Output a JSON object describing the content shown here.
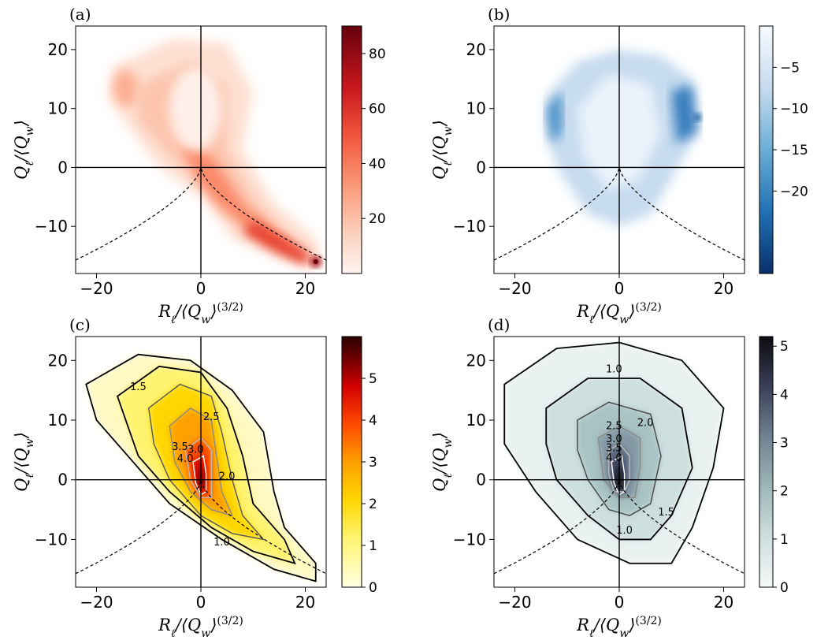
{
  "chart_data": [
    {
      "panel": "(a)",
      "type": "heatmap",
      "cmap": "Reds",
      "xlabel": "R_ℓ/⟨Q_w⟩^(3/2)",
      "ylabel": "Q_ℓ/⟨Q_w⟩",
      "xlim": [
        -24,
        24
      ],
      "ylim": [
        -18,
        24
      ],
      "xticks": [
        -20,
        0,
        20
      ],
      "yticks": [
        -10,
        0,
        10,
        20
      ],
      "colorbar": {
        "min": 0,
        "max": 90,
        "ticks": [
          20,
          40,
          60,
          80
        ]
      },
      "shape": "blob",
      "blobs": [
        {
          "cx": -3,
          "cy": 8,
          "rx": 13,
          "ry": 11,
          "v": 12
        },
        {
          "cx": 2,
          "cy": 16,
          "rx": 8,
          "ry": 5,
          "v": 9
        },
        {
          "cx": 5,
          "cy": -4,
          "rx": 7,
          "ry": 5,
          "v": 25
        },
        {
          "cx": 12,
          "cy": -10,
          "rx": 6,
          "ry": 4,
          "v": 40
        },
        {
          "cx": 18,
          "cy": -14,
          "rx": 4,
          "ry": 3,
          "v": 62
        },
        {
          "cx": 22,
          "cy": -16,
          "rx": 1.5,
          "ry": 1.5,
          "v": 88
        },
        {
          "cx": -14,
          "cy": 12,
          "rx": 5,
          "ry": 6,
          "v": 32
        }
      ],
      "cusp_curve": "Q = -(27/4)^(1/3) * |R|^(2/3)"
    },
    {
      "panel": "(b)",
      "type": "heatmap",
      "cmap": "Blues_r",
      "xlabel": "R_ℓ/⟨Q_w⟩^(3/2)",
      "ylabel": "Q_ℓ/⟨Q_w⟩",
      "xlim": [
        -24,
        24
      ],
      "ylim": [
        -18,
        24
      ],
      "xticks": [
        -20,
        0,
        20
      ],
      "yticks": [
        -10,
        0,
        10,
        20
      ],
      "colorbar": {
        "min": -30,
        "max": 0,
        "ticks": [
          -5,
          -10,
          -15,
          -20
        ]
      },
      "blobs": [
        {
          "cx": 0,
          "cy": 8,
          "rx": 10,
          "ry": 11,
          "v": -4
        },
        {
          "cx": -12,
          "cy": 10,
          "rx": 3,
          "ry": 6,
          "v": -12
        },
        {
          "cx": 12,
          "cy": 10,
          "rx": 3,
          "ry": 6,
          "v": -14
        },
        {
          "cx": 15,
          "cy": 8.5,
          "rx": 1.2,
          "ry": 1.2,
          "v": -22
        }
      ]
    },
    {
      "panel": "(c)",
      "type": "heatmap",
      "cmap": "hot_r",
      "xlabel": "R_ℓ/⟨Q_w⟩^(3/2)",
      "ylabel": "Q_ℓ/⟨Q_w⟩",
      "xlim": [
        -24,
        24
      ],
      "ylim": [
        -18,
        24
      ],
      "xticks": [
        -20,
        0,
        20
      ],
      "yticks": [
        -10,
        0,
        10,
        20
      ],
      "colorbar": {
        "min": 0,
        "max": 6,
        "ticks": [
          0,
          1,
          2,
          3,
          4,
          5
        ]
      },
      "contour_labels": [
        "1.5",
        "2.5",
        "3.5",
        "3.0",
        "4.0",
        "2.0",
        "1.0"
      ],
      "peak": {
        "x": 0,
        "y": 0,
        "v": 5.8
      }
    },
    {
      "panel": "(d)",
      "type": "heatmap",
      "cmap": "bone_r",
      "xlabel": "R_ℓ/⟨Q_w⟩^(3/2)",
      "ylabel": "Q_ℓ/⟨Q_w⟩",
      "xlim": [
        -24,
        24
      ],
      "ylim": [
        -18,
        24
      ],
      "xticks": [
        -20,
        0,
        20
      ],
      "yticks": [
        -10,
        0,
        10,
        20
      ],
      "colorbar": {
        "min": 0,
        "max": 5.2,
        "ticks": [
          0,
          1,
          2,
          3,
          4,
          5
        ]
      },
      "contour_labels": [
        "1.0",
        "2.5",
        "2.0",
        "3.0",
        "3.5",
        "4.0",
        "1.5",
        "1.0"
      ],
      "peak": {
        "x": 0,
        "y": 0,
        "v": 5.2
      }
    }
  ]
}
